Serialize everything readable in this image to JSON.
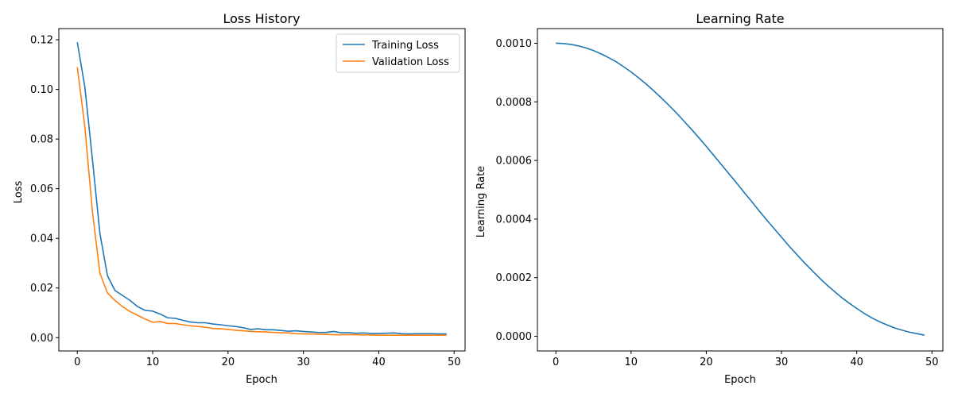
{
  "colors": {
    "series1": "#1f77b4",
    "series2": "#ff7f0e",
    "axis": "#000000",
    "legend_border": "#cccccc"
  },
  "chart_data": [
    {
      "type": "line",
      "title": "Loss History",
      "xlabel": "Epoch",
      "ylabel": "Loss",
      "xlim": [
        -2.45,
        51.45
      ],
      "ylim": [
        -0.00535,
        0.1245
      ],
      "xticks": [
        0,
        10,
        20,
        30,
        40,
        50
      ],
      "xtick_labels": [
        "0",
        "10",
        "20",
        "30",
        "40",
        "50"
      ],
      "yticks": [
        0,
        0.02,
        0.04,
        0.06,
        0.08,
        0.1,
        0.12
      ],
      "ytick_labels": [
        "0.00",
        "0.02",
        "0.04",
        "0.06",
        "0.08",
        "0.10",
        "0.12"
      ],
      "grid": false,
      "legend_position": "top-right",
      "x": [
        0,
        1,
        2,
        3,
        4,
        5,
        6,
        7,
        8,
        9,
        10,
        11,
        12,
        13,
        14,
        15,
        16,
        17,
        18,
        19,
        20,
        21,
        22,
        23,
        24,
        25,
        26,
        27,
        28,
        29,
        30,
        31,
        32,
        33,
        34,
        35,
        36,
        37,
        38,
        39,
        40,
        41,
        42,
        43,
        44,
        45,
        46,
        47,
        48,
        49
      ],
      "series": [
        {
          "name": "Training Loss",
          "color": "#1f77b4",
          "values": [
            0.119,
            0.101,
            0.072,
            0.042,
            0.025,
            0.019,
            0.017,
            0.015,
            0.0125,
            0.011,
            0.0107,
            0.0095,
            0.008,
            0.0078,
            0.007,
            0.0063,
            0.006,
            0.006,
            0.0055,
            0.0052,
            0.0048,
            0.0045,
            0.004,
            0.0033,
            0.0036,
            0.0032,
            0.0032,
            0.0029,
            0.0026,
            0.0028,
            0.0025,
            0.0023,
            0.0021,
            0.0021,
            0.0025,
            0.002,
            0.002,
            0.0018,
            0.0019,
            0.0017,
            0.0017,
            0.0018,
            0.0019,
            0.0016,
            0.0015,
            0.0016,
            0.0016,
            0.0016,
            0.0015,
            0.0015
          ]
        },
        {
          "name": "Validation Loss",
          "color": "#ff7f0e",
          "values": [
            0.109,
            0.085,
            0.051,
            0.026,
            0.018,
            0.015,
            0.0125,
            0.0105,
            0.009,
            0.0075,
            0.0062,
            0.0065,
            0.0057,
            0.0057,
            0.0052,
            0.0048,
            0.0045,
            0.0042,
            0.0037,
            0.0036,
            0.0033,
            0.003,
            0.0028,
            0.0025,
            0.0024,
            0.0023,
            0.0021,
            0.002,
            0.0019,
            0.0016,
            0.0015,
            0.0015,
            0.0014,
            0.0013,
            0.0012,
            0.0012,
            0.0012,
            0.0012,
            0.0011,
            0.0011,
            0.001,
            0.001,
            0.001,
            0.001,
            0.001,
            0.001,
            0.001,
            0.001,
            0.001,
            0.001
          ]
        }
      ]
    },
    {
      "type": "line",
      "title": "Learning Rate",
      "xlabel": "Epoch",
      "ylabel": "Learning Rate",
      "xlim": [
        -2.45,
        51.45
      ],
      "ylim": [
        -5e-05,
        0.00105
      ],
      "xticks": [
        0,
        10,
        20,
        30,
        40,
        50
      ],
      "xtick_labels": [
        "0",
        "10",
        "20",
        "30",
        "40",
        "50"
      ],
      "yticks": [
        0,
        0.0002,
        0.0004,
        0.0006,
        0.0008,
        0.001
      ],
      "ytick_labels": [
        "0.0000",
        "0.0002",
        "0.0004",
        "0.0006",
        "0.0008",
        "0.0010"
      ],
      "grid": false,
      "legend_position": "none",
      "x": [
        0,
        1,
        2,
        3,
        4,
        5,
        6,
        7,
        8,
        9,
        10,
        11,
        12,
        13,
        14,
        15,
        16,
        17,
        18,
        19,
        20,
        21,
        22,
        23,
        24,
        25,
        26,
        27,
        28,
        29,
        30,
        31,
        32,
        33,
        34,
        35,
        36,
        37,
        38,
        39,
        40,
        41,
        42,
        43,
        44,
        45,
        46,
        47,
        48,
        49
      ],
      "series": [
        {
          "color": "#1f77b4",
          "values": [
            0.001,
            0.000999,
            0.000996,
            0.000991,
            0.000984,
            0.000975,
            0.000964,
            0.000951,
            0.000937,
            0.00092,
            0.000902,
            0.000882,
            0.000861,
            0.000838,
            0.000814,
            0.000789,
            0.000763,
            0.000735,
            0.000707,
            0.000678,
            0.000648,
            0.000617,
            0.000586,
            0.000555,
            0.000524,
            0.000492,
            0.000461,
            0.000429,
            0.000398,
            0.000368,
            0.000338,
            0.000308,
            0.00028,
            0.000252,
            0.000226,
            0.0002,
            0.000176,
            0.000154,
            0.000132,
            0.000113,
            9.5e-05,
            7.8e-05,
            6.3e-05,
            5e-05,
            3.9e-05,
            2.9e-05,
            2.1e-05,
            1.4e-05,
            9e-06,
            4e-06
          ]
        }
      ]
    }
  ]
}
